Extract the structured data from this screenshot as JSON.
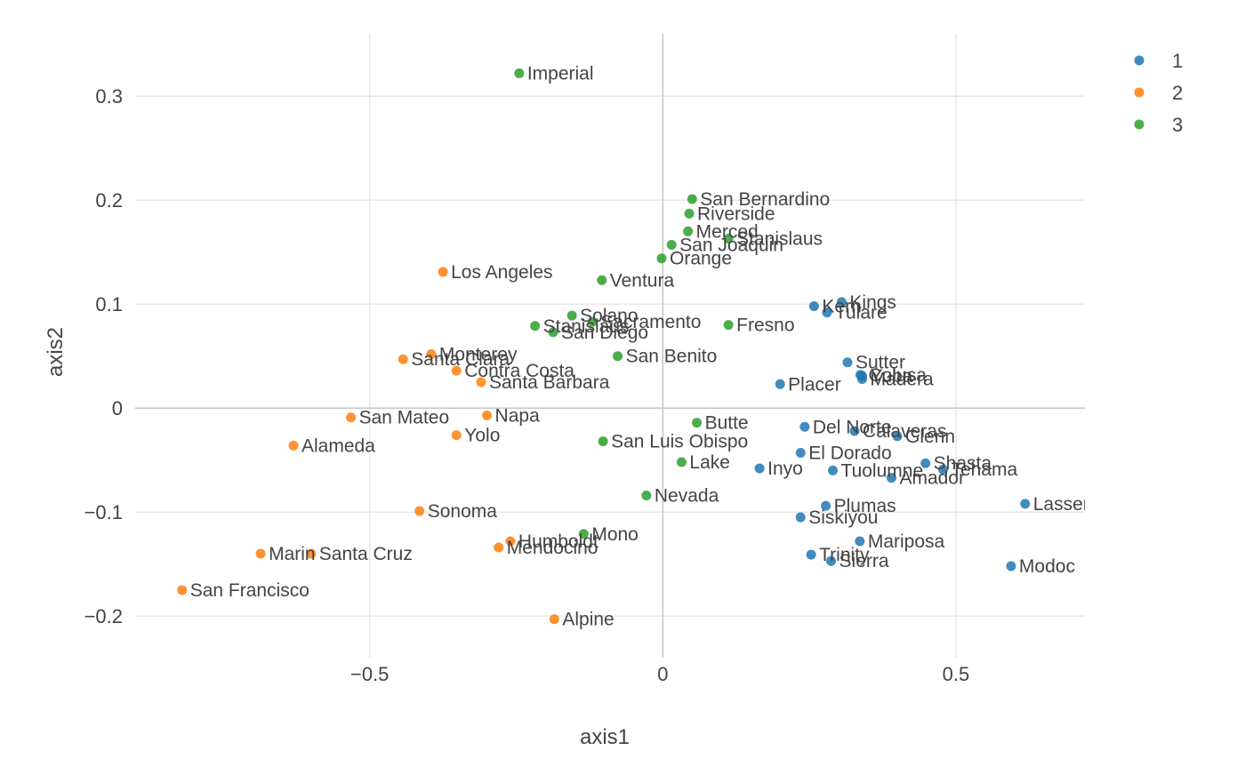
{
  "chart_data": {
    "type": "scatter",
    "xlabel": "axis1",
    "ylabel": "axis2",
    "xlim": [
      -0.9,
      0.72
    ],
    "ylim": [
      -0.24,
      0.36
    ],
    "x_ticks": [
      {
        "value": -0.5,
        "label": "−0.5"
      },
      {
        "value": 0,
        "label": "0"
      },
      {
        "value": 0.5,
        "label": "0.5"
      }
    ],
    "y_ticks": [
      {
        "value": -0.2,
        "label": "−0.2"
      },
      {
        "value": -0.1,
        "label": "−0.1"
      },
      {
        "value": 0,
        "label": "0"
      },
      {
        "value": 0.1,
        "label": "0.1"
      },
      {
        "value": 0.2,
        "label": "0.2"
      },
      {
        "value": 0.3,
        "label": "0.3"
      }
    ],
    "grid": true,
    "legend_position": "top-right",
    "series": [
      {
        "name": "1",
        "color": "#1f77b4",
        "points": [
          {
            "label": "Kings",
            "x": 0.305,
            "y": 0.102
          },
          {
            "label": "Kern",
            "x": 0.258,
            "y": 0.098
          },
          {
            "label": "Tulare",
            "x": 0.28,
            "y": 0.092
          },
          {
            "label": "Sutter",
            "x": 0.315,
            "y": 0.044
          },
          {
            "label": "Colusa",
            "x": 0.337,
            "y": 0.032
          },
          {
            "label": "Yuba",
            "x": 0.34,
            "y": 0.031
          },
          {
            "label": "Madera",
            "x": 0.34,
            "y": 0.028
          },
          {
            "label": "Placer",
            "x": 0.2,
            "y": 0.023
          },
          {
            "label": "Del Norte",
            "x": 0.242,
            "y": -0.018
          },
          {
            "label": "Calaveras",
            "x": 0.327,
            "y": -0.022
          },
          {
            "label": "Glenn",
            "x": 0.4,
            "y": -0.027
          },
          {
            "label": "El Dorado",
            "x": 0.235,
            "y": -0.043
          },
          {
            "label": "Shasta",
            "x": 0.448,
            "y": -0.053
          },
          {
            "label": "Tehama",
            "x": 0.478,
            "y": -0.059
          },
          {
            "label": "Inyo",
            "x": 0.165,
            "y": -0.058
          },
          {
            "label": "Tuolumne",
            "x": 0.29,
            "y": -0.06
          },
          {
            "label": "Amador",
            "x": 0.39,
            "y": -0.067
          },
          {
            "label": "Plumas",
            "x": 0.278,
            "y": -0.094
          },
          {
            "label": "Lassen",
            "x": 0.618,
            "y": -0.092
          },
          {
            "label": "Siskiyou",
            "x": 0.235,
            "y": -0.105
          },
          {
            "label": "Mariposa",
            "x": 0.336,
            "y": -0.128
          },
          {
            "label": "Trinity",
            "x": 0.253,
            "y": -0.141
          },
          {
            "label": "Sierra",
            "x": 0.287,
            "y": -0.147
          },
          {
            "label": "Modoc",
            "x": 0.594,
            "y": -0.152
          }
        ]
      },
      {
        "name": "2",
        "color": "#ff7f0e",
        "points": [
          {
            "label": "Los Angeles",
            "x": -0.375,
            "y": 0.131
          },
          {
            "label": "Monterey",
            "x": -0.395,
            "y": 0.052
          },
          {
            "label": "Santa Clara",
            "x": -0.443,
            "y": 0.047
          },
          {
            "label": "Contra Costa",
            "x": -0.352,
            "y": 0.036
          },
          {
            "label": "Santa Barbara",
            "x": -0.31,
            "y": 0.025
          },
          {
            "label": "San Mateo",
            "x": -0.532,
            "y": -0.009
          },
          {
            "label": "Napa",
            "x": -0.3,
            "y": -0.007
          },
          {
            "label": "Yolo",
            "x": -0.352,
            "y": -0.026
          },
          {
            "label": "Alameda",
            "x": -0.63,
            "y": -0.036
          },
          {
            "label": "Sonoma",
            "x": -0.415,
            "y": -0.099
          },
          {
            "label": "Humboldt",
            "x": -0.26,
            "y": -0.128
          },
          {
            "label": "Mendocino",
            "x": -0.28,
            "y": -0.134
          },
          {
            "label": "Marin",
            "x": -0.686,
            "y": -0.14
          },
          {
            "label": "Santa Cruz",
            "x": -0.6,
            "y": -0.14
          },
          {
            "label": "San Francisco",
            "x": -0.82,
            "y": -0.175
          },
          {
            "label": "Alpine",
            "x": -0.185,
            "y": -0.203
          }
        ]
      },
      {
        "name": "3",
        "color": "#2ca02c",
        "points": [
          {
            "label": "Imperial",
            "x": -0.245,
            "y": 0.322
          },
          {
            "label": "San Bernardino",
            "x": 0.05,
            "y": 0.201
          },
          {
            "label": "Riverside",
            "x": 0.045,
            "y": 0.187
          },
          {
            "label": "Merced",
            "x": 0.043,
            "y": 0.17
          },
          {
            "label": "Stanislaus",
            "x": 0.112,
            "y": 0.163
          },
          {
            "label": "San Joaquin",
            "x": 0.015,
            "y": 0.157
          },
          {
            "label": "Orange",
            "x": -0.002,
            "y": 0.144
          },
          {
            "label": "Ventura",
            "x": -0.104,
            "y": 0.123
          },
          {
            "label": "Solano",
            "x": -0.155,
            "y": 0.089
          },
          {
            "label": "Sacramento",
            "x": -0.12,
            "y": 0.083
          },
          {
            "label": "Fresno",
            "x": 0.112,
            "y": 0.08
          },
          {
            "label": "Stanislaus",
            "x": -0.218,
            "y": 0.079
          },
          {
            "label": "San Diego",
            "x": -0.187,
            "y": 0.073
          },
          {
            "label": "San Benito",
            "x": -0.077,
            "y": 0.05
          },
          {
            "label": "Butte",
            "x": 0.058,
            "y": -0.014
          },
          {
            "label": "San Luis Obispo",
            "x": -0.102,
            "y": -0.032
          },
          {
            "label": "Lake",
            "x": 0.032,
            "y": -0.052
          },
          {
            "label": "Nevada",
            "x": -0.028,
            "y": -0.084
          },
          {
            "label": "Mono",
            "x": -0.135,
            "y": -0.121
          }
        ]
      }
    ]
  }
}
